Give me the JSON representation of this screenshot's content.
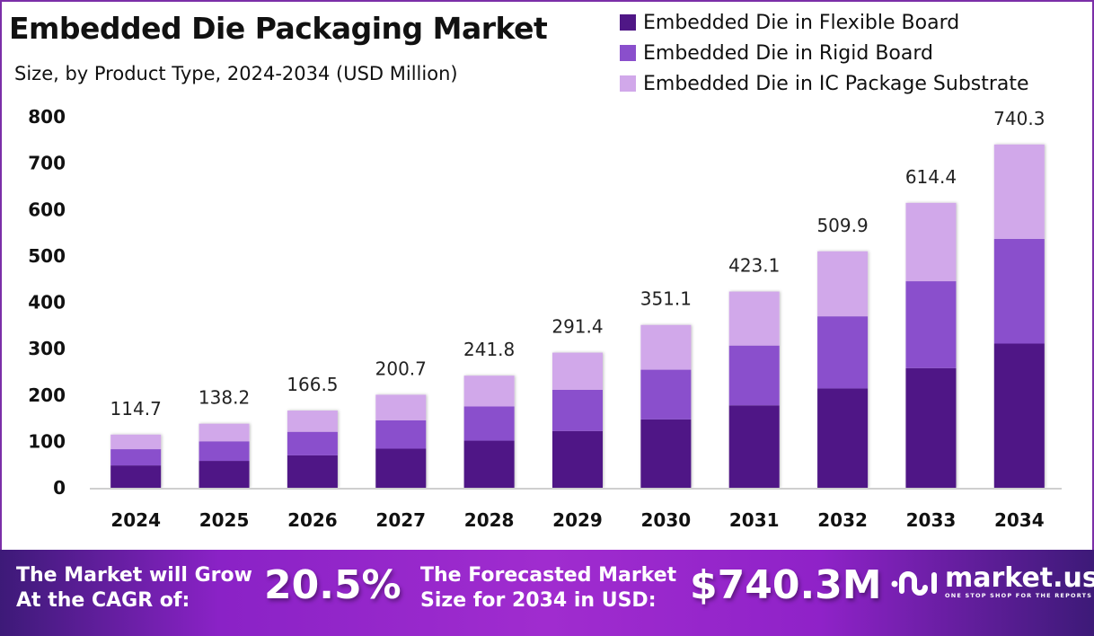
{
  "header": {
    "title": "Embedded Die Packaging Market",
    "subtitle": "Size, by Product Type, 2024-2034 (USD Million)"
  },
  "colors": {
    "flexible": "#4f1786",
    "rigid": "#8a4fcc",
    "ic": "#d1a8ea",
    "frame": "#7b2fa8"
  },
  "chart_data": {
    "type": "bar",
    "stacked": true,
    "title": "Embedded Die Packaging Market",
    "subtitle": "Size, by Product Type, 2024-2034 (USD Million)",
    "xlabel": "",
    "ylabel": "",
    "ylim": [
      0,
      800
    ],
    "yticks": [
      0,
      100,
      200,
      300,
      400,
      500,
      600,
      700,
      800
    ],
    "grid": false,
    "legend_position": "top-right",
    "categories": [
      "2024",
      "2025",
      "2026",
      "2027",
      "2028",
      "2029",
      "2030",
      "2031",
      "2032",
      "2033",
      "2034"
    ],
    "totals": [
      114.7,
      138.2,
      166.5,
      200.7,
      241.8,
      291.4,
      351.1,
      423.1,
      509.9,
      614.4,
      740.3
    ],
    "total_labels": [
      "114.7",
      "138.2",
      "166.5",
      "200.7",
      "241.8",
      "291.4",
      "351.1",
      "423.1",
      "509.9",
      "614.4",
      "740.3"
    ],
    "series": [
      {
        "name": "Embedded Die in Flexible Board",
        "values": [
          48.2,
          58.0,
          69.9,
          84.3,
          101.6,
          122.4,
          147.5,
          177.7,
          214.2,
          258.0,
          310.9
        ]
      },
      {
        "name": "Embedded Die in Rigid Board",
        "values": [
          35.0,
          42.2,
          50.8,
          61.2,
          73.7,
          88.9,
          107.1,
          129.0,
          155.5,
          187.4,
          225.8
        ]
      },
      {
        "name": "Embedded Die in IC Package Substrate",
        "values": [
          31.5,
          38.0,
          45.8,
          55.2,
          66.5,
          80.1,
          96.5,
          116.4,
          140.2,
          169.0,
          203.6
        ]
      }
    ]
  },
  "banner": {
    "cagr_label_line1": "The Market will Grow",
    "cagr_label_line2": "At the CAGR of:",
    "cagr_value": "20.5%",
    "forecast_label_line1": "The Forecasted Market",
    "forecast_label_line2": "Size for 2034 in USD:",
    "forecast_value": "$740.3M",
    "logo_name": "market.us",
    "logo_tagline": "ONE STOP SHOP FOR THE REPORTS"
  }
}
